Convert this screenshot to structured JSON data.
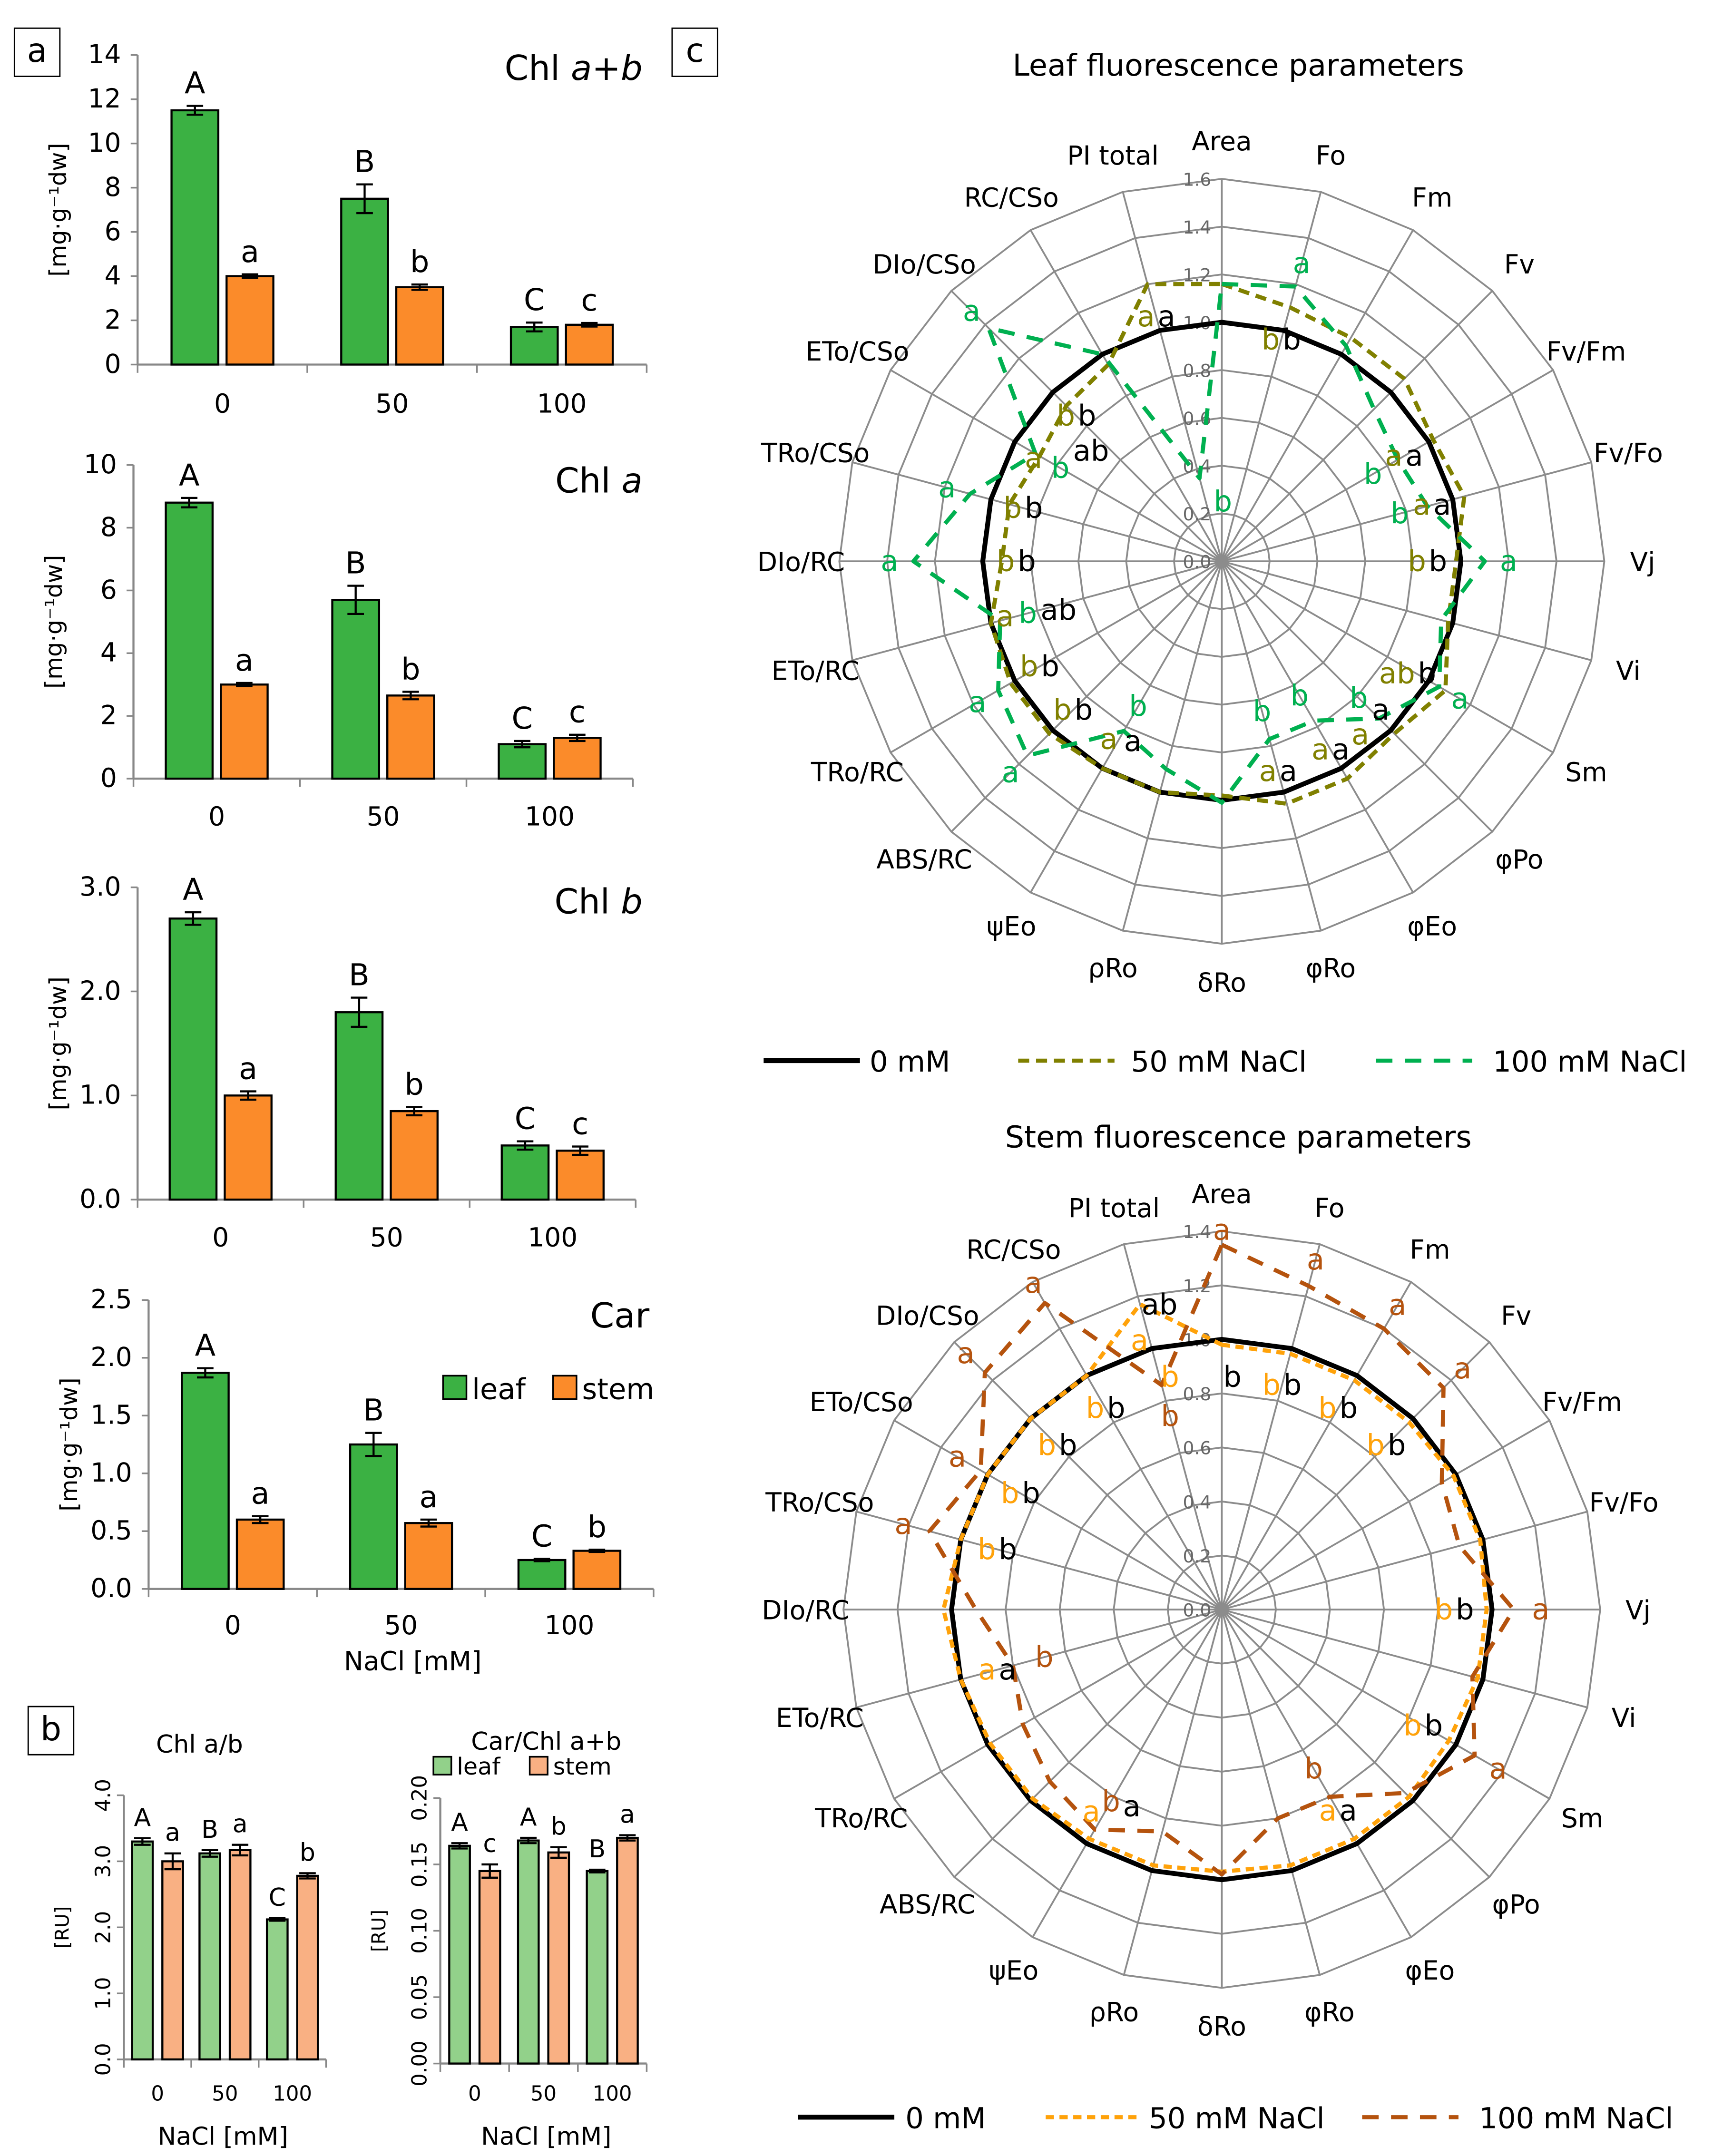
{
  "panels": {
    "a": "a",
    "b": "b",
    "c": "c"
  },
  "colors": {
    "leaf": "#3bb143",
    "stem": "#fb8b2a",
    "leaf_light": "#92d18a",
    "stem_light": "#f9b083",
    "ctrl": "#000000",
    "leaf50": "#808000",
    "leaf100": "#00b050",
    "stem50": "#ffa20a",
    "stem100": "#b5530e"
  },
  "chart_data": [
    {
      "id": "chl_ab",
      "type": "bar",
      "title": "Chl ",
      "title_italic": "a+b",
      "ylabel": "[mg·g⁻¹dw]",
      "xlabel": "",
      "categories": [
        "0",
        "50",
        "100"
      ],
      "ylim": [
        0,
        14
      ],
      "yticks": [
        "0",
        "2",
        "4",
        "6",
        "8",
        "10",
        "12",
        "14"
      ],
      "series": [
        {
          "name": "leaf",
          "values": [
            11.5,
            7.5,
            1.7
          ],
          "errors": [
            0.2,
            0.65,
            0.2
          ],
          "letters": [
            "A",
            "B",
            "C"
          ]
        },
        {
          "name": "stem",
          "values": [
            4.0,
            3.5,
            1.8
          ],
          "errors": [
            0.08,
            0.12,
            0.08
          ],
          "letters": [
            "a",
            "b",
            "c"
          ]
        }
      ]
    },
    {
      "id": "chl_a",
      "type": "bar",
      "title": "Chl ",
      "title_italic": "a",
      "ylabel": "[mg·g⁻¹dw]",
      "xlabel": "",
      "categories": [
        "0",
        "50",
        "100"
      ],
      "ylim": [
        0,
        10
      ],
      "yticks": [
        "0",
        "2",
        "4",
        "6",
        "8",
        "10"
      ],
      "series": [
        {
          "name": "leaf",
          "values": [
            8.8,
            5.7,
            1.1
          ],
          "errors": [
            0.15,
            0.45,
            0.1
          ],
          "letters": [
            "A",
            "B",
            "C"
          ]
        },
        {
          "name": "stem",
          "values": [
            3.0,
            2.65,
            1.3
          ],
          "errors": [
            0.05,
            0.12,
            0.1
          ],
          "letters": [
            "a",
            "b",
            "c"
          ]
        }
      ]
    },
    {
      "id": "chl_b",
      "type": "bar",
      "title": "Chl ",
      "title_italic": "b",
      "ylabel": "[mg·g⁻¹dw]",
      "xlabel": "",
      "categories": [
        "0",
        "50",
        "100"
      ],
      "ylim": [
        0,
        3
      ],
      "yticks": [
        "0.0",
        "1.0",
        "2.0",
        "3.0"
      ],
      "series": [
        {
          "name": "leaf",
          "values": [
            2.7,
            1.8,
            0.52
          ],
          "errors": [
            0.06,
            0.14,
            0.04
          ],
          "letters": [
            "A",
            "B",
            "C"
          ]
        },
        {
          "name": "stem",
          "values": [
            1.0,
            0.85,
            0.47
          ],
          "errors": [
            0.04,
            0.04,
            0.04
          ],
          "letters": [
            "a",
            "b",
            "c"
          ]
        }
      ]
    },
    {
      "id": "car",
      "type": "bar",
      "title": "Car",
      "title_italic": "",
      "ylabel": "[mg·g⁻¹dw]",
      "xlabel": "NaCl [mM]",
      "categories": [
        "0",
        "50",
        "100"
      ],
      "ylim": [
        0,
        2.5
      ],
      "yticks": [
        "0.0",
        "0.5",
        "1.0",
        "1.5",
        "2.0",
        "2.5"
      ],
      "legend": [
        "leaf",
        "stem"
      ],
      "series": [
        {
          "name": "leaf",
          "values": [
            1.87,
            1.25,
            0.25
          ],
          "errors": [
            0.04,
            0.1,
            0.01
          ],
          "letters": [
            "A",
            "B",
            "C"
          ]
        },
        {
          "name": "stem",
          "values": [
            0.6,
            0.57,
            0.33
          ],
          "errors": [
            0.03,
            0.03,
            0.01
          ],
          "letters": [
            "a",
            "a",
            "b"
          ]
        }
      ]
    },
    {
      "id": "chl_ratio",
      "type": "bar",
      "title": "Chl a/b",
      "title_italic": "",
      "ylabel": "[RU]",
      "xlabel": "NaCl [mM]",
      "categories": [
        "0",
        "50",
        "100"
      ],
      "ylim": [
        0,
        4
      ],
      "yticks": [
        "0.0",
        "1.0",
        "2.0",
        "3.0",
        "4.0"
      ],
      "series": [
        {
          "name": "leaf",
          "values": [
            3.3,
            3.12,
            2.12
          ],
          "errors": [
            0.05,
            0.05,
            0.02
          ],
          "letters": [
            "A",
            "B",
            "C"
          ]
        },
        {
          "name": "stem",
          "values": [
            3.0,
            3.17,
            2.78
          ],
          "errors": [
            0.12,
            0.08,
            0.04
          ],
          "letters": [
            "a",
            "a",
            "b"
          ]
        }
      ]
    },
    {
      "id": "car_chl",
      "type": "bar",
      "title": "Car/Chl a+b",
      "title_italic": "",
      "ylabel": "[RU]",
      "xlabel": "NaCl [mM]",
      "categories": [
        "0",
        "50",
        "100"
      ],
      "ylim": [
        0,
        0.2
      ],
      "yticks": [
        "0.00",
        "0.05",
        "0.10",
        "0.15",
        "0.20"
      ],
      "legend": [
        "leaf",
        "stem"
      ],
      "series": [
        {
          "name": "leaf",
          "values": [
            0.164,
            0.168,
            0.145
          ],
          "errors": [
            0.002,
            0.002,
            0.001
          ],
          "letters": [
            "A",
            "A",
            "B"
          ]
        },
        {
          "name": "stem",
          "values": [
            0.145,
            0.159,
            0.17
          ],
          "errors": [
            0.005,
            0.004,
            0.002
          ],
          "letters": [
            "c",
            "b",
            "a"
          ]
        }
      ]
    },
    {
      "id": "leaf_radar",
      "type": "radar",
      "title": "Leaf fluorescence parameters",
      "axes": [
        "Area",
        "Fo",
        "Fm",
        "Fv",
        "Fv/Fm",
        "Fv/Fo",
        "Vj",
        "Vi",
        "Sm",
        "φPo",
        "φEo",
        "φRo",
        "δRo",
        "ρRo",
        "ψEo",
        "ABS/RC",
        "TRo/RC",
        "ETo/RC",
        "DIo/RC",
        "TRo/CSo",
        "ETo/CSo",
        "DIo/CSo",
        "RC/CSo",
        "PI total"
      ],
      "rlim": [
        0,
        1.6
      ],
      "rticks": [
        "0.0",
        "0.2",
        "0.4",
        "0.6",
        "0.8",
        "1.0",
        "1.2",
        "1.4",
        "1.6"
      ],
      "series": [
        {
          "name": "0 mM",
          "values": [
            1,
            1,
            1,
            1,
            1,
            1,
            1,
            1,
            1,
            1,
            1,
            1,
            1,
            1,
            1,
            1,
            1,
            1,
            1,
            1,
            1,
            1,
            1,
            1
          ],
          "letters": [
            "",
            "b",
            "",
            "",
            "a",
            "a",
            "b",
            "",
            "b",
            "a",
            "a",
            "a",
            "",
            "",
            "a",
            "b",
            "b",
            "ab",
            "b",
            "b",
            "ab",
            "b",
            "",
            "a"
          ]
        },
        {
          "name": "50 mM NaCl",
          "values": [
            1.16,
            1.1,
            1.08,
            1.08,
            1.02,
            1.05,
            0.98,
            0.98,
            1.08,
            1.02,
            1.05,
            1.05,
            0.98,
            1.0,
            1.0,
            1.02,
            1.02,
            1.0,
            0.92,
            0.92,
            0.88,
            0.92,
            0.95,
            1.2
          ],
          "letters": [
            "",
            "b",
            "",
            "",
            "a",
            "a",
            "b",
            "",
            "ab",
            "a",
            "a",
            "a",
            "",
            "",
            "a",
            "b",
            "b",
            "a",
            "b",
            "b",
            "a",
            "b",
            "",
            "a"
          ]
        },
        {
          "name": "100 mM NaCl",
          "values": [
            1.16,
            1.19,
            1.04,
            0.9,
            0.85,
            0.89,
            1.1,
            0.95,
            1.05,
            0.93,
            0.77,
            0.77,
            1.01,
            0.9,
            0.82,
            1.15,
            1.08,
            0.96,
            1.29,
            1.09,
            0.9,
            1.38,
            1.0,
            0.36
          ],
          "letters": [
            "",
            "a",
            "",
            "",
            "b",
            "b",
            "a",
            "",
            "a",
            "b",
            "b",
            "b",
            "",
            "",
            "b",
            "a",
            "a",
            "b",
            "a",
            "a",
            "b",
            "a",
            "",
            "b"
          ]
        }
      ]
    },
    {
      "id": "stem_radar",
      "type": "radar",
      "title": "Stem fluorescence parameters",
      "axes": [
        "Area",
        "Fo",
        "Fm",
        "Fv",
        "Fv/Fm",
        "Fv/Fo",
        "Vj",
        "Vi",
        "Sm",
        "φPo",
        "φEo",
        "φRo",
        "δRo",
        "ρRo",
        "ψEo",
        "ABS/RC",
        "TRo/RC",
        "ETo/RC",
        "DIo/RC",
        "TRo/CSo",
        "ETo/CSo",
        "DIo/CSo",
        "RC/CSo",
        "PI total"
      ],
      "rlim": [
        0,
        1.4
      ],
      "rticks": [
        "0.0",
        "0.2",
        "0.4",
        "0.6",
        "0.8",
        "1.0",
        "1.2",
        "1.4"
      ],
      "series": [
        {
          "name": "0 mM",
          "values": [
            1,
            1,
            1,
            1,
            1,
            1,
            1,
            1,
            1,
            1,
            1,
            1,
            1,
            1,
            1,
            1,
            1,
            1,
            1,
            1,
            1,
            1,
            1,
            1
          ],
          "letters": [
            "b",
            "b",
            "b",
            "b",
            "",
            "",
            "b",
            "",
            "b",
            "",
            "a",
            "",
            "",
            "",
            "a",
            "",
            "",
            "a",
            "",
            "b",
            "b",
            "b",
            "b",
            "ab"
          ]
        },
        {
          "name": "50 mM NaCl",
          "values": [
            0.98,
            0.98,
            0.98,
            0.98,
            0.99,
            0.99,
            0.98,
            0.98,
            0.97,
            0.98,
            0.98,
            0.98,
            0.97,
            0.98,
            0.98,
            0.99,
            0.99,
            1.0,
            1.03,
            1.0,
            1.0,
            1.0,
            1.0,
            1.17
          ],
          "letters": [
            "b",
            "b",
            "b",
            "b",
            "",
            "",
            "b",
            "",
            "b",
            "",
            "a",
            "",
            "",
            "",
            "a",
            "",
            "",
            "a",
            "",
            "b",
            "b",
            "b",
            "b",
            "a"
          ]
        },
        {
          "name": "100 mM NaCl",
          "values": [
            1.35,
            1.24,
            1.2,
            1.16,
            0.94,
            0.91,
            1.08,
            0.96,
            1.08,
            0.96,
            0.8,
            0.8,
            0.98,
            0.85,
            0.94,
            0.9,
            0.85,
            0.8,
            0.91,
            1.12,
            1.03,
            1.24,
            1.31,
            0.86
          ],
          "letters": [
            "a",
            "a",
            "a",
            "a",
            "",
            "",
            "a",
            "",
            "a",
            "",
            "b",
            "",
            "",
            "",
            "b",
            "",
            "",
            "b",
            "",
            "a",
            "a",
            "a",
            "a",
            "b"
          ]
        }
      ]
    }
  ]
}
